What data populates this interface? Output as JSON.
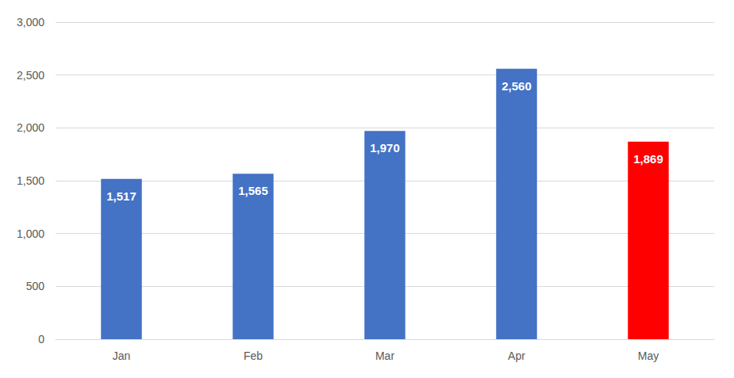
{
  "chart_data": {
    "type": "bar",
    "categories": [
      "Jan",
      "Feb",
      "Mar",
      "Apr",
      "May"
    ],
    "values": [
      1517,
      1565,
      1970,
      2560,
      1869
    ],
    "value_labels": [
      "1,517",
      "1,565",
      "1,970",
      "2,560",
      "1,869"
    ],
    "colors": [
      "#4472c4",
      "#4472c4",
      "#4472c4",
      "#4472c4",
      "#ff0000"
    ],
    "ylim": [
      0,
      3000
    ],
    "yticks": [
      0,
      500,
      {
        "value": 1000,
        "label": "1,000"
      },
      {
        "value": 1500,
        "label": "1,500"
      },
      {
        "value": 2000,
        "label": "2,000"
      },
      {
        "value": 2500,
        "label": "2,500"
      },
      {
        "value": 3000,
        "label": "3,000"
      }
    ],
    "grid": true,
    "data_labels": true
  }
}
